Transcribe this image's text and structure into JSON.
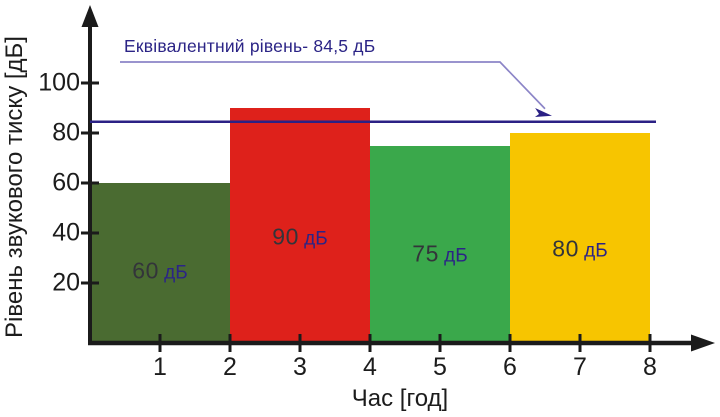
{
  "chart_data": {
    "type": "bar",
    "title": "",
    "xlabel": "Час [год]",
    "ylabel": "Рівень звукового тиску [дБ]",
    "x_ticks": [
      1,
      2,
      3,
      4,
      5,
      6,
      7,
      8
    ],
    "y_ticks": [
      20,
      40,
      60,
      80,
      100
    ],
    "xlim": [
      0,
      8.8
    ],
    "ylim": [
      0,
      130
    ],
    "grid": false,
    "bars": [
      {
        "x_start": 0,
        "x_end": 2,
        "value": 60,
        "label": "60",
        "unit": "дБ",
        "color": "#4a6b31"
      },
      {
        "x_start": 2,
        "x_end": 4,
        "value": 90,
        "label": "90",
        "unit": "дБ",
        "color": "#de211b"
      },
      {
        "x_start": 4,
        "x_end": 6,
        "value": 75,
        "label": "75",
        "unit": "дБ",
        "color": "#3aa84b"
      },
      {
        "x_start": 6,
        "x_end": 8,
        "value": 80,
        "label": "80",
        "unit": "дБ",
        "color": "#f7c500"
      }
    ],
    "equivalent_level": {
      "value": 84.5,
      "label": "Еквівалентний рівень- 84,5 дБ"
    }
  },
  "colors": {
    "axis": "#1b1b1b",
    "equivalent_line": "#2b2185",
    "leader_line": "#8c85c7",
    "arrowhead": "#2b2185",
    "annotation_text": "#2b2486",
    "tick_text": "#1c1c1c",
    "bar_number_text": "#33343a",
    "bar_unit_text": "#2b2486"
  }
}
